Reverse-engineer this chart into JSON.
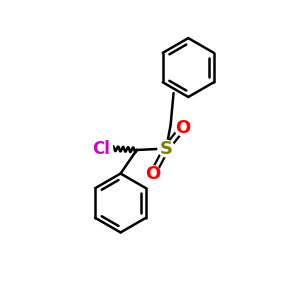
{
  "background_color": "#ffffff",
  "bond_color": "#000000",
  "bond_width": 1.8,
  "label_S": "S",
  "label_O": "O",
  "label_Cl": "Cl",
  "label_S_color": "#808000",
  "label_O_color": "#ff0000",
  "label_Cl_color": "#cc00cc",
  "S_fontsize": 13,
  "O_fontsize": 13,
  "Cl_fontsize": 12
}
